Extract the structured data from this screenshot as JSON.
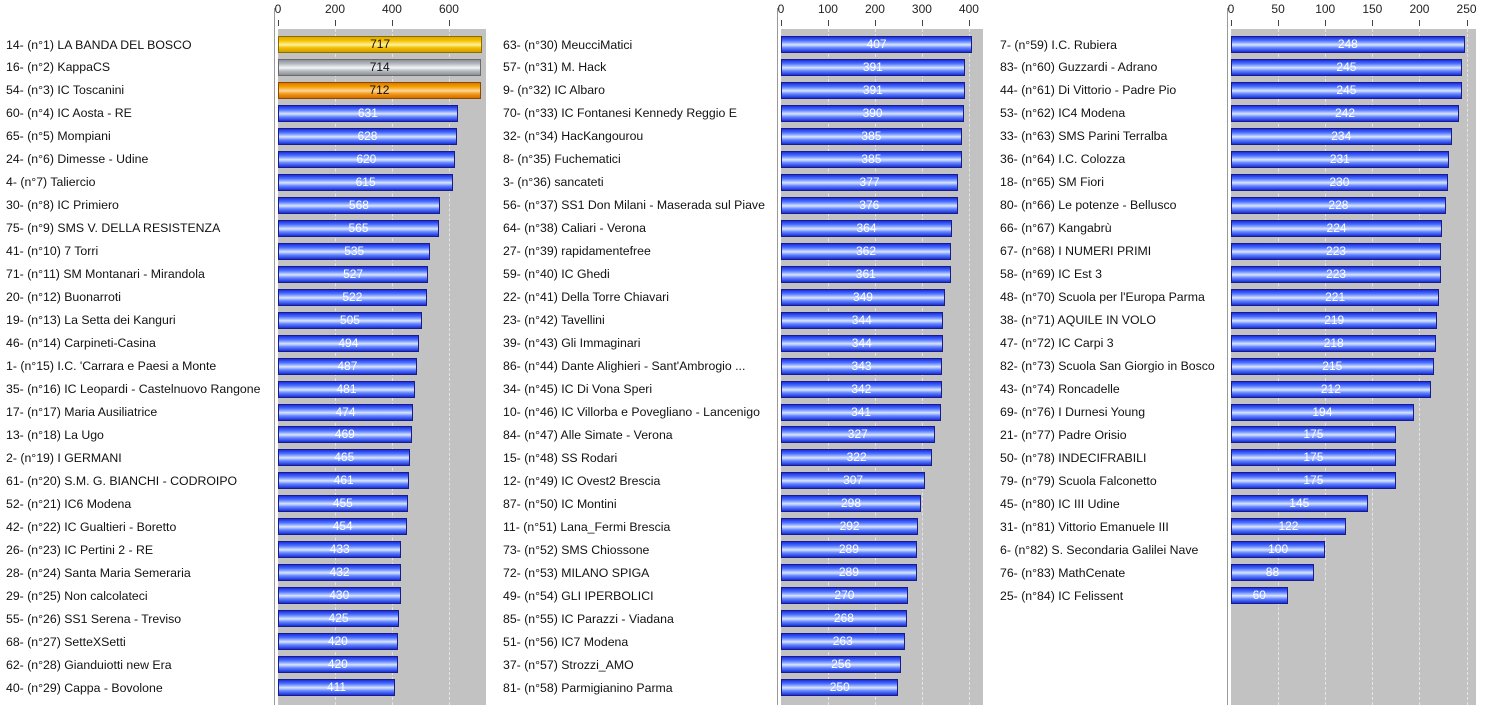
{
  "chart_data": [
    {
      "type": "bar",
      "orientation": "horizontal",
      "xlim": [
        0,
        730
      ],
      "ticks": [
        0,
        200,
        400,
        600
      ],
      "grid": true,
      "highlight_colors": {
        "first": "#f5c400",
        "second": "#b5bac0",
        "third": "#f5a000",
        "default": "#4f74ff"
      },
      "categories": [
        "14- (n°1) LA BANDA DEL BOSCO",
        "16- (n°2) KappaCS",
        "54- (n°3) IC Toscanini",
        "60- (n°4) IC Aosta - RE",
        "65- (n°5) Mompiani",
        "24- (n°6) Dimesse - Udine",
        "4- (n°7) Taliercio",
        "30- (n°8) IC Primiero",
        "75- (n°9) SMS V. DELLA RESISTENZA",
        "41- (n°10) 7 Torri",
        "71- (n°11) SM Montanari - Mirandola",
        "20- (n°12) Buonarroti",
        "19- (n°13) La Setta dei Kanguri",
        "46- (n°14) Carpineti-Casina",
        "1- (n°15) I.C. 'Carrara e Paesi a Monte",
        "35- (n°16) IC Leopardi - Castelnuovo Rangone",
        "17- (n°17) Maria Ausiliatrice",
        "13- (n°18) La Ugo",
        "2- (n°19) I GERMANI",
        "61- (n°20) S.M. G. BIANCHI - CODROIPO",
        "52- (n°21) IC6 Modena",
        "42- (n°22) IC Gualtieri - Boretto",
        "26- (n°23) IC Pertini 2 - RE",
        "28- (n°24) Santa Maria Semeraria",
        "29- (n°25) Non calcolateci",
        "55- (n°26) SS1 Serena - Treviso",
        "68- (n°27) SetteXSetti",
        "62- (n°28) Gianduiotti new Era",
        "40- (n°29) Cappa - Bovolone"
      ],
      "values": [
        717,
        714,
        712,
        631,
        628,
        620,
        615,
        568,
        565,
        535,
        527,
        522,
        505,
        494,
        487,
        481,
        474,
        469,
        465,
        461,
        455,
        454,
        433,
        432,
        430,
        425,
        420,
        420,
        411
      ]
    },
    {
      "type": "bar",
      "orientation": "horizontal",
      "xlim": [
        0,
        430
      ],
      "ticks": [
        0,
        100,
        200,
        300,
        400
      ],
      "grid": true,
      "categories": [
        "63- (n°30) MeucciMatici",
        "57- (n°31) M. Hack",
        "9- (n°32) IC Albaro",
        "70- (n°33) IC Fontanesi Kennedy Reggio E",
        "32- (n°34) HacKangourou",
        "8- (n°35) Fuchematici",
        "3- (n°36) sancateti",
        "56- (n°37) SS1 Don Milani - Maserada sul Piave",
        "64- (n°38) Caliari - Verona",
        "27- (n°39) rapidamentefree",
        "59- (n°40) IC Ghedi",
        "22- (n°41) Della Torre Chiavari",
        "23- (n°42) Tavellini",
        "39- (n°43) Gli Immaginari",
        "86- (n°44) Dante Alighieri - Sant'Ambrogio ...",
        "34- (n°45) IC Di Vona Speri",
        "10- (n°46) IC Villorba e Povegliano - Lancenigo",
        "84- (n°47) Alle Simate - Verona",
        "15- (n°48) SS Rodari",
        "12- (n°49) IC Ovest2 Brescia",
        "87- (n°50) IC Montini",
        "11- (n°51) Lana_Fermi Brescia",
        "73- (n°52) SMS Chiossone",
        "72- (n°53) MILANO SPIGA",
        "49- (n°54) GLI IPERBOLICI",
        "85- (n°55) IC Parazzi - Viadana",
        "51- (n°56) IC7 Modena",
        "37- (n°57) Strozzi_AMO",
        "81- (n°58) Parmigianino Parma"
      ],
      "values": [
        407,
        391,
        391,
        390,
        385,
        385,
        377,
        376,
        364,
        362,
        361,
        349,
        344,
        344,
        343,
        342,
        341,
        327,
        322,
        307,
        298,
        292,
        289,
        289,
        270,
        268,
        263,
        256,
        250
      ]
    },
    {
      "type": "bar",
      "orientation": "horizontal",
      "xlim": [
        0,
        260
      ],
      "ticks": [
        0,
        50,
        100,
        150,
        200,
        250
      ],
      "grid": true,
      "categories": [
        "7- (n°59) I.C. Rubiera",
        "83- (n°60) Guzzardi - Adrano",
        "44- (n°61) Di Vittorio - Padre Pio",
        "53- (n°62) IC4 Modena",
        "33- (n°63) SMS Parini Terralba",
        "36- (n°64) I.C. Colozza",
        "18- (n°65) SM Fiori",
        "80- (n°66) Le potenze - Bellusco",
        "66- (n°67) Kangabrù",
        "67- (n°68) I NUMERI PRIMI",
        "58- (n°69) IC Est 3",
        "48- (n°70) Scuola per l'Europa Parma",
        "38- (n°71) AQUILE IN VOLO",
        "47- (n°72) IC Carpi 3",
        "82- (n°73) Scuola San Giorgio in Bosco",
        "43- (n°74) Roncadelle",
        "69- (n°76) I Durnesi Young",
        "21- (n°77) Padre Orisio",
        "50- (n°78) INDECIFRABILI",
        "79- (n°79) Scuola Falconetto",
        "45- (n°80) IC III Udine",
        "31- (n°81) Vittorio Emanuele III",
        "6- (n°82) S. Secondaria Galilei Nave",
        "76- (n°83) MathCenate",
        "25- (n°84) IC Felissent"
      ],
      "values": [
        248,
        245,
        245,
        242,
        234,
        231,
        230,
        228,
        224,
        223,
        223,
        221,
        219,
        218,
        215,
        212,
        194,
        175,
        175,
        175,
        145,
        122,
        100,
        88,
        60
      ]
    }
  ]
}
